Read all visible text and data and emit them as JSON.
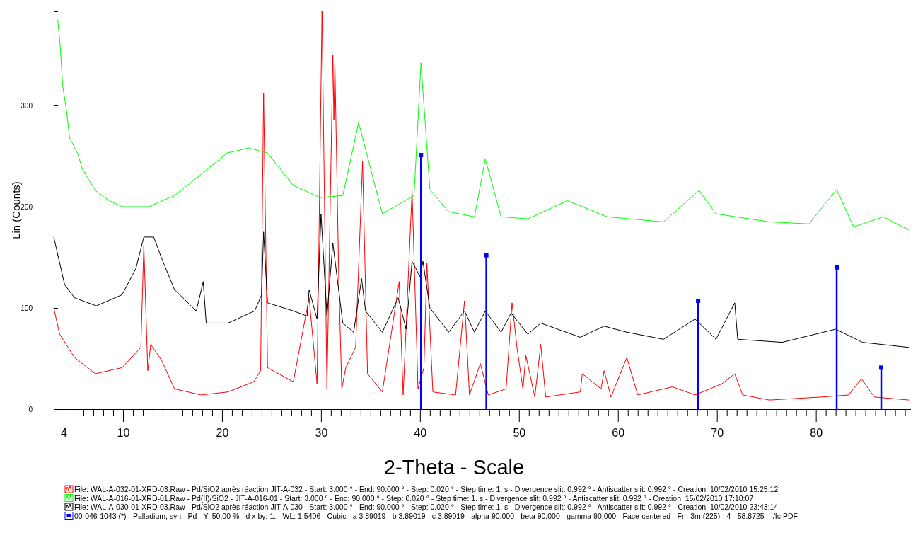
{
  "chart_data": {
    "type": "line",
    "xlabel": "2-Theta - Scale",
    "ylabel": "Lin (Counts)",
    "xlim": [
      3,
      89.6
    ],
    "ylim": [
      0,
      393
    ],
    "xticks": [
      4,
      {
        "value": 5,
        "label": null
      },
      {
        "value": 6,
        "label": null
      },
      {
        "value": 7,
        "label": null
      },
      {
        "value": 8,
        "label": null
      },
      {
        "value": 9,
        "label": null
      },
      10,
      {
        "value": 11,
        "label": null
      },
      {
        "value": 12,
        "label": null
      },
      {
        "value": 13,
        "label": null
      },
      {
        "value": 14,
        "label": null
      },
      {
        "value": 15,
        "label": null
      },
      {
        "value": 16,
        "label": null
      },
      {
        "value": 17,
        "label": null
      },
      {
        "value": 18,
        "label": null
      },
      {
        "value": 19,
        "label": null
      },
      20,
      {
        "value": 21,
        "label": null
      },
      {
        "value": 22,
        "label": null
      },
      {
        "value": 23,
        "label": null
      },
      {
        "value": 24,
        "label": null
      },
      {
        "value": 25,
        "label": null
      },
      {
        "value": 26,
        "label": null
      },
      {
        "value": 27,
        "label": null
      },
      {
        "value": 28,
        "label": null
      },
      {
        "value": 29,
        "label": null
      },
      30,
      {
        "value": 31,
        "label": null
      },
      {
        "value": 32,
        "label": null
      },
      {
        "value": 33,
        "label": null
      },
      {
        "value": 34,
        "label": null
      },
      {
        "value": 35,
        "label": null
      },
      {
        "value": 36,
        "label": null
      },
      {
        "value": 37,
        "label": null
      },
      {
        "value": 38,
        "label": null
      },
      {
        "value": 39,
        "label": null
      },
      40,
      {
        "value": 41,
        "label": null
      },
      {
        "value": 42,
        "label": null
      },
      {
        "value": 43,
        "label": null
      },
      {
        "value": 44,
        "label": null
      },
      {
        "value": 45,
        "label": null
      },
      {
        "value": 46,
        "label": null
      },
      {
        "value": 47,
        "label": null
      },
      {
        "value": 48,
        "label": null
      },
      {
        "value": 49,
        "label": null
      },
      50,
      {
        "value": 51,
        "label": null
      },
      {
        "value": 52,
        "label": null
      },
      {
        "value": 53,
        "label": null
      },
      {
        "value": 54,
        "label": null
      },
      {
        "value": 55,
        "label": null
      },
      {
        "value": 56,
        "label": null
      },
      {
        "value": 57,
        "label": null
      },
      {
        "value": 58,
        "label": null
      },
      {
        "value": 59,
        "label": null
      },
      60,
      {
        "value": 61,
        "label": null
      },
      {
        "value": 62,
        "label": null
      },
      {
        "value": 63,
        "label": null
      },
      {
        "value": 64,
        "label": null
      },
      {
        "value": 65,
        "label": null
      },
      {
        "value": 66,
        "label": null
      },
      {
        "value": 67,
        "label": null
      },
      {
        "value": 68,
        "label": null
      },
      {
        "value": 69,
        "label": null
      },
      70,
      {
        "value": 71,
        "label": null
      },
      {
        "value": 72,
        "label": null
      },
      {
        "value": 73,
        "label": null
      },
      {
        "value": 74,
        "label": null
      },
      {
        "value": 75,
        "label": null
      },
      {
        "value": 76,
        "label": null
      },
      {
        "value": 77,
        "label": null
      },
      {
        "value": 78,
        "label": null
      },
      {
        "value": 79,
        "label": null
      },
      80,
      {
        "value": 81,
        "label": null
      },
      {
        "value": 82,
        "label": null
      },
      {
        "value": 83,
        "label": null
      },
      {
        "value": 84,
        "label": null
      },
      {
        "value": 85,
        "label": null
      },
      {
        "value": 86,
        "label": null
      },
      {
        "value": 87,
        "label": null
      },
      {
        "value": 88,
        "label": null
      },
      {
        "value": 89,
        "label": null
      }
    ],
    "yticks": [
      0,
      100,
      200,
      300
    ],
    "legend": "bottom",
    "series": [
      {
        "name": "File: WAL-A-032-01-XRD-03.Raw - Pd/SiO2 après réaction JIT-A-032 - Start: 3.000 ° - End: 90.000 ° - Step: 0.020 ° - Step time: 1. s - Divergence slit: 0.992 ° - Antiscatter slit: 0.992 ° - Creation: 10/02/2010 15:25:12",
        "color": "#ff0000",
        "x": [
          3.0,
          3.6,
          5.1,
          7.2,
          9.9,
          11.8,
          12.1,
          12.5,
          12.8,
          13.9,
          15.2,
          17.9,
          20.6,
          23.2,
          23.9,
          24.2,
          24.6,
          27.2,
          28.8,
          29.6,
          30.1,
          30.6,
          31.2,
          31.3,
          31.4,
          31.8,
          32.1,
          32.5,
          33.5,
          34.2,
          34.7,
          36.2,
          37.9,
          38.3,
          39.2,
          39.8,
          40.4,
          40.7,
          41.3,
          43.6,
          44.5,
          45.0,
          46.1,
          46.9,
          48.7,
          49.3,
          49.8,
          50.4,
          50.7,
          51.6,
          52.2,
          52.7,
          56.2,
          56.4,
          58.3,
          58.6,
          59.3,
          60.9,
          62.0,
          65.5,
          67.8,
          70.5,
          71.8,
          72.6,
          75.3,
          80.6,
          83.3,
          84.6,
          85.9,
          89.4
        ],
        "values": [
          100,
          74,
          51,
          35,
          41,
          61,
          162,
          38,
          64,
          48,
          20,
          14,
          17,
          27,
          38,
          312,
          41,
          27,
          110,
          25,
          393,
          20,
          350,
          286,
          343,
          126,
          20,
          41,
          61,
          245,
          35,
          17,
          126,
          14,
          216,
          20,
          41,
          144,
          17,
          14,
          107,
          14,
          45,
          14,
          20,
          105,
          61,
          20,
          53,
          12,
          64,
          12,
          17,
          35,
          20,
          38,
          12,
          51,
          14,
          22,
          14,
          25,
          35,
          14,
          9,
          12,
          14,
          30,
          12,
          9
        ]
      },
      {
        "name": "File: WAL-A-016-01-XRD-01.Raw - Pd(II)/SiO2  -  JIT-A-016-01 - Start: 3.000 ° - End: 90.000 ° - Step: 0.020 ° - Step time: 1. s - Divergence slit: 0.992 ° - Antiscatter slit: 0.992 ° - Creation: 15/02/2010 17:10:07",
        "color": "#00ff00",
        "x": [
          3.4,
          3.65,
          3.9,
          4.3,
          4.6,
          5.4,
          5.9,
          7.2,
          8.6,
          9.9,
          12.6,
          15.2,
          17.9,
          20.5,
          22.7,
          24.6,
          27.2,
          29.9,
          32.2,
          33.8,
          36.2,
          39.4,
          40.1,
          41.0,
          42.9,
          45.5,
          46.6,
          48.2,
          50.9,
          54.9,
          58.9,
          64.6,
          68.2,
          69.9,
          75.3,
          79.3,
          82.1,
          83.8,
          86.8,
          89.4
        ],
        "values": [
          385,
          359,
          320,
          294,
          268,
          253,
          237,
          216,
          206,
          200,
          200,
          211,
          232,
          253,
          258,
          253,
          221,
          209,
          211,
          283,
          193,
          211,
          342,
          217,
          195,
          190,
          247,
          190,
          188,
          206,
          190,
          185,
          216,
          193,
          185,
          183,
          217,
          180,
          190,
          177
        ]
      },
      {
        "name": "File: WAL-A-030-01-XRD-03.Raw - Pd/SiO2 après réaction JIT-A-030 - Start: 3.000 ° - End: 90.000 ° - Step: 0.020 ° - Step time: 1. s - Divergence slit: 0.992 ° - Antiscatter slit: 0.992 ° - Creation: 10/02/2010 23:43:14",
        "color": "#000000",
        "x": [
          3.0,
          4.1,
          5.1,
          7.3,
          9.9,
          11.3,
          12.1,
          13.1,
          13.9,
          15.2,
          17.4,
          18.1,
          18.4,
          20.6,
          23.3,
          24.0,
          24.2,
          24.6,
          27.2,
          28.6,
          28.8,
          29.6,
          30.0,
          30.6,
          31.2,
          32.2,
          33.3,
          34.1,
          34.5,
          36.2,
          37.8,
          38.6,
          39.2,
          40.0,
          40.3,
          41.0,
          42.9,
          44.5,
          45.5,
          46.6,
          48.2,
          49.2,
          50.9,
          52.2,
          56.2,
          58.6,
          60.9,
          64.6,
          67.8,
          69.9,
          71.8,
          72.1,
          76.6,
          82.0,
          84.7,
          89.4
        ],
        "values": [
          170,
          123,
          110,
          102,
          113,
          139,
          170,
          170,
          149,
          118,
          97,
          126,
          85,
          85,
          97,
          113,
          175,
          105,
          97,
          92,
          118,
          89,
          193,
          92,
          164,
          85,
          76,
          129,
          97,
          76,
          110,
          79,
          146,
          131,
          146,
          100,
          76,
          97,
          76,
          97,
          76,
          95,
          74,
          85,
          71,
          82,
          76,
          69,
          89,
          69,
          105,
          69,
          66,
          79,
          66,
          61
        ]
      },
      {
        "name": "00-046-1043 (*) - Palladium, syn - Pd - Y: 50.00 % - d x by: 1. - WL: 1.5406 - Cubic - a 3.89019 - b 3.89019 - c 3.89019 - alpha 90.000 - beta 90.000 - gamma 90.000 - Face-centered - Fm-3m (225) - 4 - 58.8725 - I/Ic PDF",
        "color": "#0000ff",
        "type": "lollipop",
        "marker": "square",
        "x": [
          40.1,
          46.7,
          68.1,
          82.1,
          86.6
        ],
        "values": [
          251,
          152,
          107,
          140,
          41
        ]
      }
    ]
  }
}
